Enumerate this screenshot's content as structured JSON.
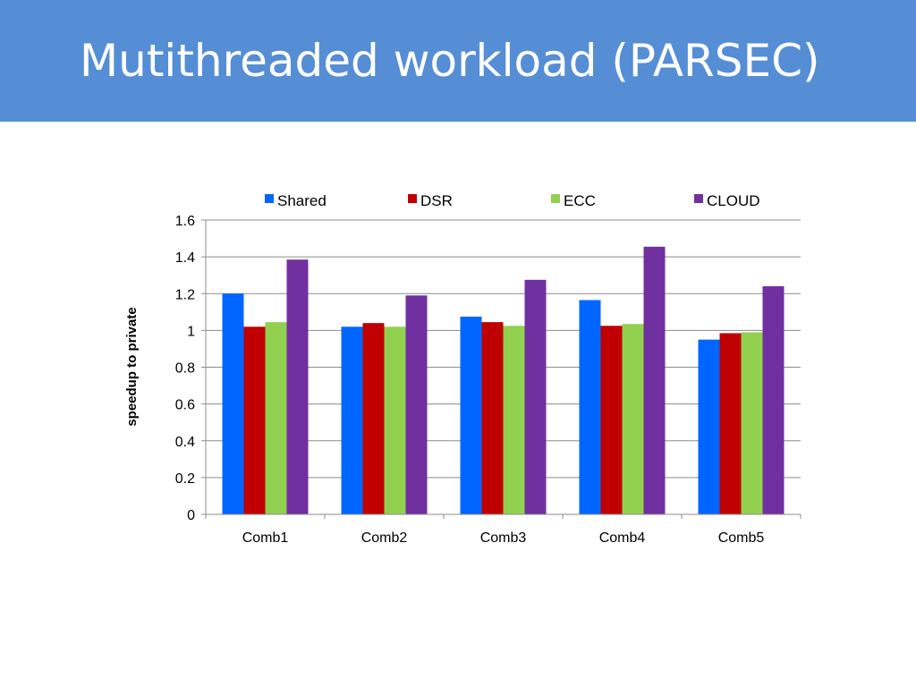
{
  "slide": {
    "title": "Mutithreaded workload (PARSEC)",
    "title_bar_color": "#558ed5"
  },
  "chart_data": {
    "type": "bar",
    "title": "",
    "xlabel": "",
    "ylabel": "speedup to private",
    "categories": [
      "Comb1",
      "Comb2",
      "Comb3",
      "Comb4",
      "Comb5"
    ],
    "ylim": [
      0,
      1.6
    ],
    "yticks": [
      "0",
      "0.2",
      "0.4",
      "0.6",
      "0.8",
      "1",
      "1.2",
      "1.4",
      "1.6"
    ],
    "grid": true,
    "legend_position": "top",
    "series": [
      {
        "name": "Shared",
        "color": "#0066ff",
        "values": [
          1.2,
          1.02,
          1.075,
          1.165,
          0.95
        ]
      },
      {
        "name": "DSR",
        "color": "#c00000",
        "values": [
          1.02,
          1.04,
          1.045,
          1.025,
          0.985
        ]
      },
      {
        "name": "ECC",
        "color": "#92d050",
        "values": [
          1.045,
          1.02,
          1.025,
          1.035,
          0.99
        ]
      },
      {
        "name": "CLOUD",
        "color": "#7030a0",
        "values": [
          1.385,
          1.19,
          1.275,
          1.455,
          1.24
        ]
      }
    ]
  }
}
